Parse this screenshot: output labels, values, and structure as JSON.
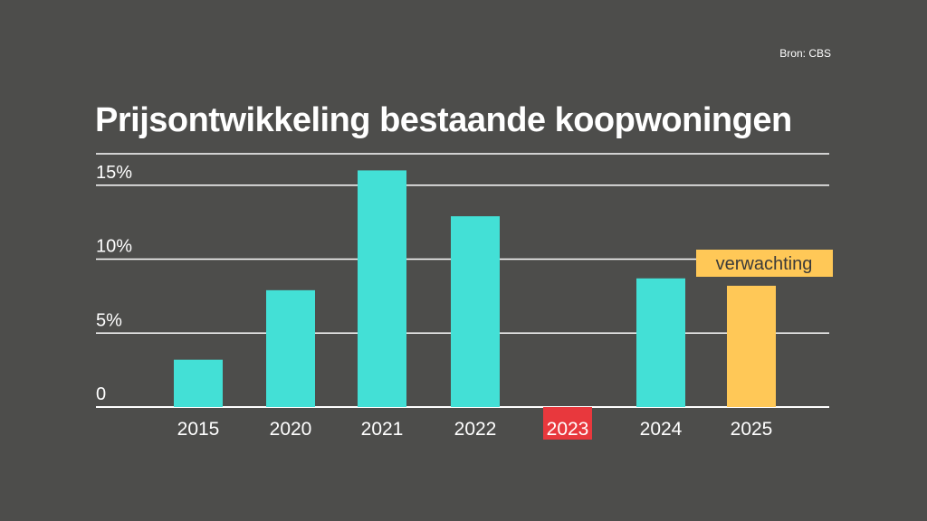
{
  "source": "Bron: CBS",
  "chart_data": {
    "type": "bar",
    "title": "Prijsontwikkeling bestaande koopwoningen",
    "categories": [
      "2015",
      "2020",
      "2021",
      "2022",
      "2023",
      "2024",
      "2025"
    ],
    "values": [
      3.2,
      7.9,
      16.0,
      12.9,
      -2.2,
      8.7,
      8.2
    ],
    "ylim": [
      0,
      15
    ],
    "yticks": [
      0,
      5,
      10,
      15
    ],
    "ytick_labels": [
      "0",
      "5%",
      "10%",
      "15%"
    ],
    "annotation": "verwachting",
    "grid": true,
    "colors": {
      "default": "#43e0d6",
      "forecast": "#ffc857",
      "negative": "#e8383d",
      "grid": "#ffffff"
    },
    "forecast_index": 6,
    "negative_index": 4
  }
}
